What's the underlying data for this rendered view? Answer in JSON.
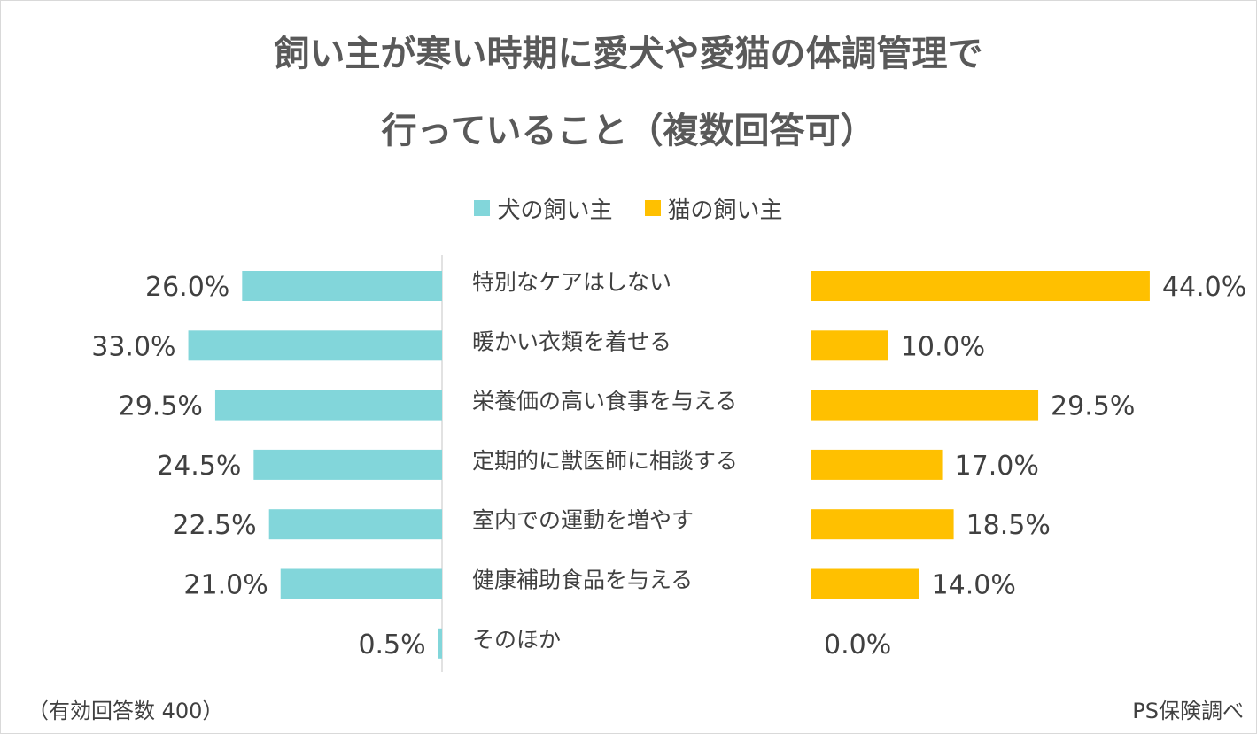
{
  "chart_data": {
    "type": "bar",
    "title_lines": [
      "飼い主が寒い時期に愛犬や愛猫の体調管理で",
      "行っていること（複数回答可）"
    ],
    "categories": [
      "特別なケアはしない",
      "暖かい衣類を着せる",
      "栄養価の高い食事を与える",
      "定期的に獣医師に相談する",
      "室内での運動を増やす",
      "健康補助食品を与える",
      "そのほか"
    ],
    "series": [
      {
        "name": "犬の飼い主",
        "color": "#82d6da",
        "values": [
          26.0,
          33.0,
          29.5,
          24.5,
          22.5,
          21.0,
          0.5
        ],
        "labels": [
          "26.0%",
          "33.0%",
          "29.5%",
          "24.5%",
          "22.5%",
          "21.0%",
          "0.5%"
        ]
      },
      {
        "name": "猫の飼い主",
        "color": "#ffc000",
        "values": [
          44.0,
          10.0,
          29.5,
          17.0,
          18.5,
          14.0,
          0.0
        ],
        "labels": [
          "44.0%",
          "10.0%",
          "29.5%",
          "17.0%",
          "18.5%",
          "14.0%",
          "0.0%"
        ]
      }
    ],
    "unit": "%",
    "legend_position": "top-center"
  },
  "footer": {
    "note_left": "（有効回答数 400）",
    "note_right": "PS保険調べ"
  }
}
